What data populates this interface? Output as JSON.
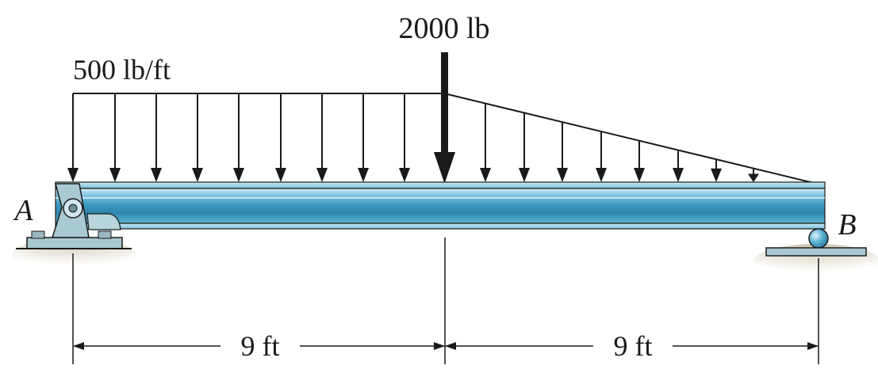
{
  "diagram": {
    "point_load": {
      "label": "2000 lb"
    },
    "distributed_load": {
      "label": "500 lb/ft"
    },
    "supports": {
      "left": {
        "label": "A",
        "type": "pin"
      },
      "right": {
        "label": "B",
        "type": "roller"
      }
    },
    "dimensions": [
      {
        "label": "9 ft"
      },
      {
        "label": "9 ft"
      }
    ],
    "colors": {
      "beam": "#4fa9cc",
      "beam_dark": "#2a7c9f",
      "beam_light": "#a9dcee",
      "support": "#9fc2cc",
      "ink": "#1a1a1a"
    }
  }
}
